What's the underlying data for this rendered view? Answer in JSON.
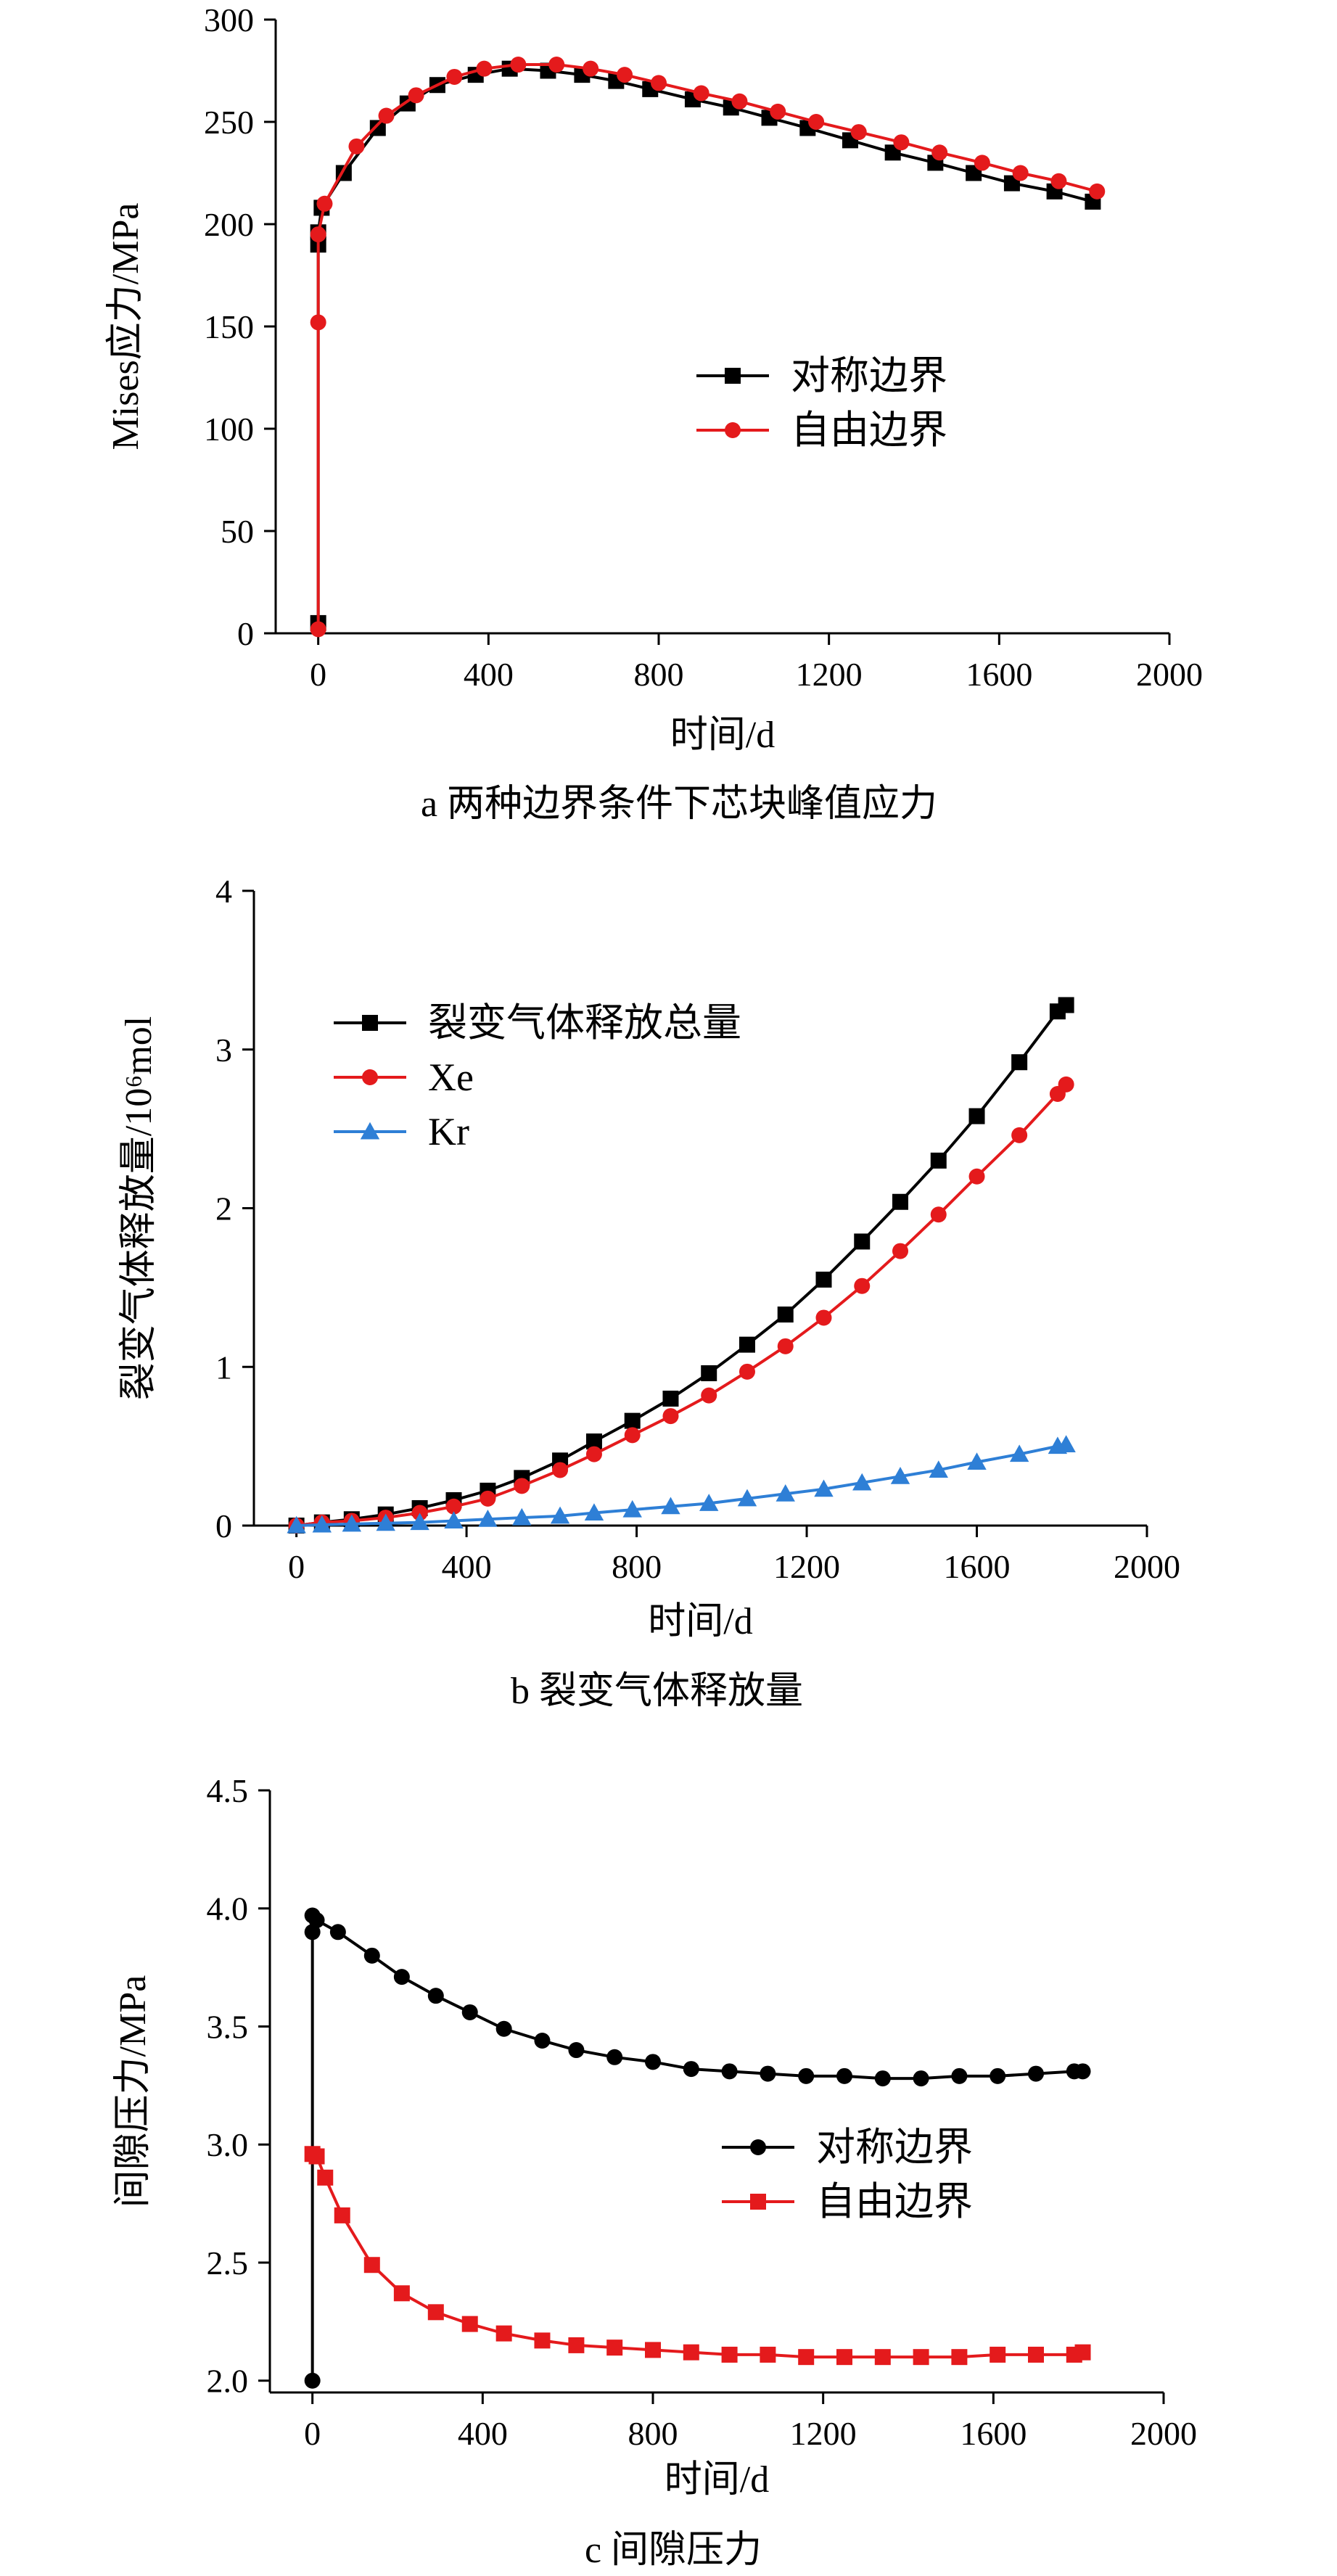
{
  "colors": {
    "black": "#000000",
    "red": "#e41a1c",
    "blue": "#2e7fd6"
  },
  "chart_data": [
    {
      "id": "a",
      "type": "line",
      "caption": "a  两种边界条件下芯块峰值应力",
      "xlabel": "时间/d",
      "ylabel": "Mises应力/MPa",
      "xlim": [
        -100,
        2000
      ],
      "ylim": [
        0,
        300
      ],
      "xticks": [
        0,
        400,
        800,
        1200,
        1600,
        2000
      ],
      "yticks": [
        0,
        50,
        100,
        150,
        200,
        250,
        300
      ],
      "legend_position": "center-right",
      "series": [
        {
          "name": "对称边界",
          "color": "#000000",
          "marker": "square",
          "x": [
            0,
            0,
            0,
            8,
            60,
            140,
            210,
            280,
            370,
            450,
            540,
            620,
            700,
            780,
            880,
            970,
            1060,
            1150,
            1250,
            1350,
            1450,
            1540,
            1630,
            1730,
            1820
          ],
          "y": [
            5,
            190,
            196,
            208,
            225,
            247,
            259,
            268,
            273,
            276,
            275,
            273,
            270,
            266,
            261,
            257,
            252,
            247,
            241,
            235,
            230,
            225,
            220,
            216,
            211
          ]
        },
        {
          "name": "自由边界",
          "color": "#e41a1c",
          "marker": "circle",
          "x": [
            0,
            0,
            0,
            15,
            90,
            160,
            230,
            320,
            390,
            470,
            560,
            640,
            720,
            800,
            900,
            990,
            1080,
            1170,
            1270,
            1370,
            1460,
            1560,
            1650,
            1740,
            1830
          ],
          "y": [
            2,
            152,
            195,
            210,
            238,
            253,
            263,
            272,
            276,
            278,
            278,
            276,
            273,
            269,
            264,
            260,
            255,
            250,
            245,
            240,
            235,
            230,
            225,
            221,
            216
          ]
        }
      ]
    },
    {
      "id": "b",
      "type": "line",
      "caption": "b  裂变气体释放量",
      "xlabel": "时间/d",
      "ylabel": "裂变气体释放量/10⁶mol",
      "xlim": [
        -100,
        2000
      ],
      "ylim": [
        0,
        4
      ],
      "xticks": [
        0,
        400,
        800,
        1200,
        1600,
        2000
      ],
      "yticks": [
        0,
        1,
        2,
        3,
        4
      ],
      "legend_position": "top-left",
      "series": [
        {
          "name": "裂变气体释放总量",
          "color": "#000000",
          "marker": "square",
          "x": [
            0,
            60,
            130,
            210,
            290,
            370,
            450,
            530,
            620,
            700,
            790,
            880,
            970,
            1060,
            1150,
            1240,
            1330,
            1420,
            1510,
            1600,
            1700,
            1790,
            1810
          ],
          "y": [
            0.0,
            0.02,
            0.04,
            0.07,
            0.11,
            0.16,
            0.22,
            0.3,
            0.41,
            0.53,
            0.66,
            0.8,
            0.96,
            1.14,
            1.33,
            1.55,
            1.79,
            2.04,
            2.3,
            2.58,
            2.92,
            3.24,
            3.28
          ]
        },
        {
          "name": "Xe",
          "color": "#e41a1c",
          "marker": "circle",
          "x": [
            0,
            60,
            130,
            210,
            290,
            370,
            450,
            530,
            620,
            700,
            790,
            880,
            970,
            1060,
            1150,
            1240,
            1330,
            1420,
            1510,
            1600,
            1700,
            1790,
            1810
          ],
          "y": [
            0.0,
            0.02,
            0.03,
            0.05,
            0.08,
            0.12,
            0.17,
            0.25,
            0.35,
            0.45,
            0.57,
            0.69,
            0.82,
            0.97,
            1.13,
            1.31,
            1.51,
            1.73,
            1.96,
            2.2,
            2.46,
            2.72,
            2.78
          ]
        },
        {
          "name": "Kr",
          "color": "#2e7fd6",
          "marker": "triangle",
          "x": [
            0,
            60,
            130,
            210,
            290,
            370,
            450,
            530,
            620,
            700,
            790,
            880,
            970,
            1060,
            1150,
            1240,
            1330,
            1420,
            1510,
            1600,
            1700,
            1790,
            1810
          ],
          "y": [
            0.0,
            0.005,
            0.01,
            0.015,
            0.02,
            0.03,
            0.04,
            0.05,
            0.06,
            0.08,
            0.1,
            0.12,
            0.14,
            0.17,
            0.2,
            0.23,
            0.27,
            0.31,
            0.35,
            0.4,
            0.45,
            0.5,
            0.51
          ]
        }
      ]
    },
    {
      "id": "c",
      "type": "line",
      "caption": "c  间隙压力",
      "xlabel": "时间/d",
      "ylabel": "间隙压力/MPa",
      "xlim": [
        -100,
        2000
      ],
      "ylim": [
        1.95,
        4.5
      ],
      "xticks": [
        0,
        400,
        800,
        1200,
        1600,
        2000
      ],
      "yticks": [
        2.0,
        2.5,
        3.0,
        3.5,
        4.0,
        4.5
      ],
      "ytick_labels": [
        "2.0",
        "2.5",
        "3.0",
        "3.5",
        "4.0",
        "4.5"
      ],
      "legend_position": "center-right",
      "series": [
        {
          "name": "对称边界",
          "color": "#000000",
          "marker": "circle",
          "x": [
            0,
            0,
            0,
            10,
            60,
            140,
            210,
            290,
            370,
            450,
            540,
            620,
            710,
            800,
            890,
            980,
            1070,
            1160,
            1250,
            1340,
            1430,
            1520,
            1610,
            1700,
            1790,
            1810
          ],
          "y": [
            2.0,
            3.9,
            3.97,
            3.95,
            3.9,
            3.8,
            3.71,
            3.63,
            3.56,
            3.49,
            3.44,
            3.4,
            3.37,
            3.35,
            3.32,
            3.31,
            3.3,
            3.29,
            3.29,
            3.28,
            3.28,
            3.29,
            3.29,
            3.3,
            3.31,
            3.31
          ]
        },
        {
          "name": "自由边界",
          "color": "#e41a1c",
          "marker": "square",
          "x": [
            0,
            10,
            30,
            70,
            140,
            210,
            290,
            370,
            450,
            540,
            620,
            710,
            800,
            890,
            980,
            1070,
            1160,
            1250,
            1340,
            1430,
            1520,
            1610,
            1700,
            1790,
            1810
          ],
          "y": [
            2.96,
            2.95,
            2.86,
            2.7,
            2.49,
            2.37,
            2.29,
            2.24,
            2.2,
            2.17,
            2.15,
            2.14,
            2.13,
            2.12,
            2.11,
            2.11,
            2.1,
            2.1,
            2.1,
            2.1,
            2.1,
            2.11,
            2.11,
            2.11,
            2.12
          ]
        }
      ]
    }
  ]
}
